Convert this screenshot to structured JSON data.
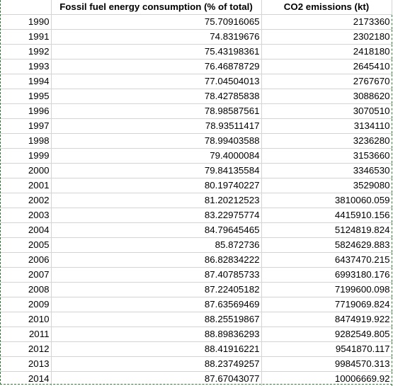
{
  "sheet": {
    "headers": [
      "",
      "Fossil fuel energy consumption (% of total)",
      "CO2 emissions (kt)"
    ],
    "rows": [
      [
        "1990",
        "75.70916065",
        "2173360"
      ],
      [
        "1991",
        "74.8319676",
        "2302180"
      ],
      [
        "1992",
        "75.43198361",
        "2418180"
      ],
      [
        "1993",
        "76.46878729",
        "2645410"
      ],
      [
        "1994",
        "77.04504013",
        "2767670"
      ],
      [
        "1995",
        "78.42785838",
        "3088620"
      ],
      [
        "1996",
        "78.98587561",
        "3070510"
      ],
      [
        "1997",
        "78.93511417",
        "3134110"
      ],
      [
        "1998",
        "78.99403588",
        "3236280"
      ],
      [
        "1999",
        "79.4000084",
        "3153660"
      ],
      [
        "2000",
        "79.84135584",
        "3346530"
      ],
      [
        "2001",
        "80.19740227",
        "3529080"
      ],
      [
        "2002",
        "81.20212523",
        "3810060.059"
      ],
      [
        "2003",
        "83.22975774",
        "4415910.156"
      ],
      [
        "2004",
        "84.79645465",
        "5124819.824"
      ],
      [
        "2005",
        "85.872736",
        "5824629.883"
      ],
      [
        "2006",
        "86.82834222",
        "6437470.215"
      ],
      [
        "2007",
        "87.40785733",
        "6993180.176"
      ],
      [
        "2008",
        "87.22405182",
        "7199600.098"
      ],
      [
        "2009",
        "87.63569469",
        "7719069.824"
      ],
      [
        "2010",
        "88.25519867",
        "8474919.922"
      ],
      [
        "2011",
        "88.89836293",
        "9282549.805"
      ],
      [
        "2012",
        "88.41916221",
        "9541870.117"
      ],
      [
        "2013",
        "88.23749257",
        "9984570.313"
      ],
      [
        "2014",
        "87.67043077",
        "10006669.92"
      ]
    ]
  },
  "colors": {
    "selection_border": "#2e7d32",
    "gridline": "#d4d4d4"
  }
}
